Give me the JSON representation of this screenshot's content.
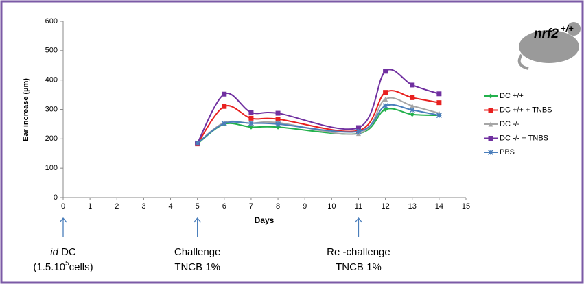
{
  "chart_data": {
    "type": "line",
    "xlabel": "Days",
    "ylabel": "Ear increase (µm)",
    "x": [
      5,
      6,
      7,
      8,
      11,
      12,
      13,
      14
    ],
    "series": [
      {
        "name": "DC +/+",
        "color": "#22b14c",
        "marker": "diamond",
        "values": [
          183,
          250,
          240,
          240,
          218,
          300,
          283,
          280
        ]
      },
      {
        "name": "DC +/+ + TNBS",
        "color": "#e8201f",
        "marker": "square",
        "values": [
          183,
          310,
          270,
          267,
          228,
          358,
          340,
          323
        ]
      },
      {
        "name": "DC -/-",
        "color": "#a6a6a6",
        "marker": "triangle",
        "values": [
          185,
          255,
          253,
          255,
          218,
          335,
          312,
          287
        ]
      },
      {
        "name": "DC -/- + TNBS",
        "color": "#7030a0",
        "marker": "square",
        "values": [
          185,
          352,
          290,
          287,
          238,
          430,
          383,
          353
        ]
      },
      {
        "name": "PBS",
        "color": "#4a7ebb",
        "marker": "star",
        "values": [
          185,
          252,
          253,
          250,
          225,
          312,
          298,
          280
        ]
      }
    ],
    "xlim": [
      0,
      15
    ],
    "xticks": [
      0,
      1,
      2,
      3,
      4,
      5,
      6,
      7,
      8,
      9,
      10,
      11,
      12,
      13,
      14,
      15
    ],
    "ylim": [
      0,
      600
    ],
    "yticks": [
      0,
      100,
      200,
      300,
      400,
      500,
      600
    ],
    "grid": false,
    "legend": "right",
    "annotations": [
      {
        "x": 0,
        "lines": [
          [
            {
              "text": "id",
              "style": "italic"
            },
            {
              "text": " DC"
            }
          ],
          [
            {
              "text": "(1.5.10"
            },
            {
              "text": "5",
              "style": "sup"
            },
            {
              "text": "cells)"
            }
          ]
        ]
      },
      {
        "x": 5,
        "lines": [
          [
            {
              "text": "Challenge"
            }
          ],
          [
            {
              "text": "TNCB 1%"
            }
          ]
        ]
      },
      {
        "x": 11,
        "lines": [
          [
            {
              "text": "Re -challenge"
            }
          ],
          [
            {
              "text": "TNCB 1%"
            }
          ]
        ]
      }
    ],
    "logo": {
      "text": "nrf2",
      "sup": "+/+"
    }
  }
}
